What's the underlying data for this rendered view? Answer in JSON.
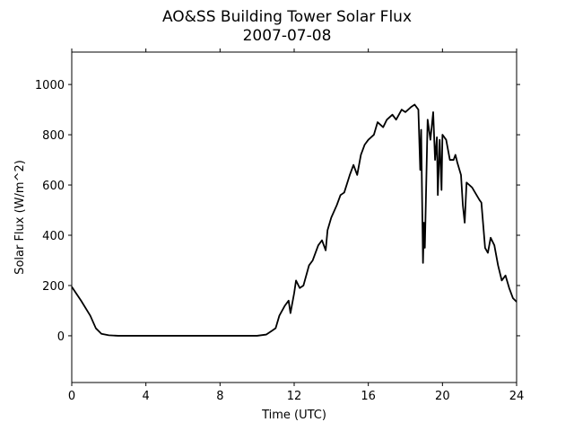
{
  "chart_data": {
    "type": "line",
    "title": "AO&SS Building Tower Solar Flux",
    "subtitle": "2007-07-08",
    "x_label": "Time (UTC)",
    "y_label": "Solar Flux (W/m^2)",
    "xlim": [
      0,
      24
    ],
    "xticks": [
      0,
      4,
      8,
      12,
      16,
      20,
      24
    ],
    "ylim": [
      -186,
      1129
    ],
    "yticks": [
      0,
      200,
      400,
      600,
      800,
      1000
    ],
    "grid": false,
    "x": [
      0,
      0.5,
      1,
      1.3,
      1.6,
      2,
      2.5,
      3,
      4,
      5,
      6,
      7,
      8,
      9,
      10,
      10.5,
      10.8,
      11,
      11.2,
      11.5,
      11.7,
      11.8,
      12,
      12.1,
      12.3,
      12.5,
      12.8,
      13,
      13.3,
      13.5,
      13.7,
      13.8,
      14,
      14.3,
      14.5,
      14.7,
      15,
      15.2,
      15.4,
      15.6,
      15.8,
      16,
      16.3,
      16.5,
      16.8,
      17,
      17.3,
      17.5,
      17.8,
      18,
      18.3,
      18.5,
      18.7,
      18.8,
      18.85,
      18.95,
      19.0,
      19.05,
      19.2,
      19.35,
      19.5,
      19.6,
      19.7,
      19.75,
      19.85,
      19.95,
      20.0,
      20.2,
      20.4,
      20.6,
      20.7,
      20.8,
      21,
      21.1,
      21.2,
      21.3,
      21.6,
      22,
      22.1,
      22.2,
      22.3,
      22.45,
      22.6,
      22.8,
      23,
      23.2,
      23.4,
      23.6,
      23.8,
      24
    ],
    "series": [
      {
        "color": "#000000",
        "values": [
          195,
          140,
          80,
          30,
          8,
          2,
          0,
          0,
          0,
          0,
          0,
          0,
          0,
          0,
          0,
          5,
          20,
          30,
          80,
          120,
          140,
          90,
          170,
          220,
          190,
          200,
          280,
          300,
          360,
          380,
          340,
          420,
          470,
          520,
          560,
          570,
          640,
          680,
          640,
          720,
          760,
          780,
          800,
          850,
          830,
          860,
          880,
          860,
          900,
          890,
          910,
          920,
          900,
          660,
          820,
          290,
          450,
          350,
          860,
          780,
          890,
          700,
          790,
          560,
          780,
          580,
          800,
          780,
          700,
          700,
          720,
          690,
          640,
          520,
          450,
          610,
          590,
          540,
          530,
          440,
          350,
          330,
          390,
          360,
          280,
          220,
          240,
          190,
          150,
          135
        ]
      }
    ]
  }
}
